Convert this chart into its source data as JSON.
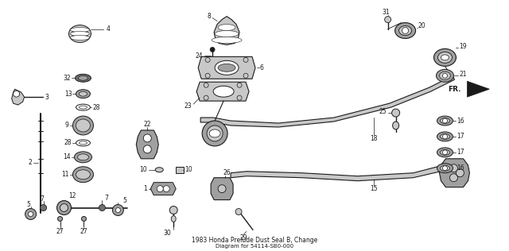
{
  "title": "1983 Honda Prelude Dust Seal B, Change",
  "subtitle": "Diagram for 54114-SB0-000",
  "bg_color": "#ffffff",
  "fg_color": "#1a1a1a",
  "figsize": [
    6.4,
    3.16
  ],
  "dpi": 100
}
